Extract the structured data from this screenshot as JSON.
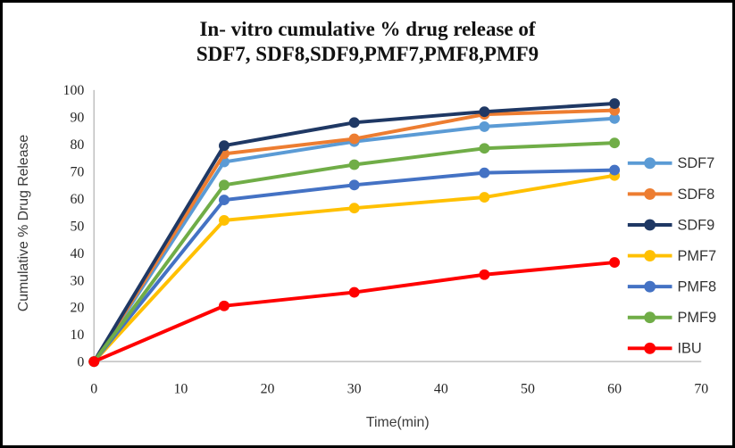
{
  "frame": {
    "border_color": "#000000",
    "background": "#FFFFFF"
  },
  "chart_data": {
    "type": "line",
    "title": "In- vitro cumulative % drug release of SDF7, SDF8,SDF9,PMF7,PMF8,PMF9",
    "title_lines": [
      "In- vitro cumulative % drug release of",
      "SDF7, SDF8,SDF9,PMF7,PMF8,PMF9"
    ],
    "xlabel": "Time(min)",
    "ylabel": "Cumulative % Drug Release",
    "x": [
      0,
      15,
      30,
      45,
      60
    ],
    "xlim": [
      0,
      70
    ],
    "ylim": [
      0,
      100
    ],
    "x_ticks": [
      0,
      10,
      20,
      30,
      40,
      50,
      60,
      70
    ],
    "y_ticks": [
      0,
      10,
      20,
      30,
      40,
      50,
      60,
      70,
      80,
      90,
      100
    ],
    "grid": false,
    "legend_position": "right",
    "axis_color": "#BFBFBF",
    "marker": "circle",
    "series": [
      {
        "name": "SDF7",
        "color": "#5B9BD5",
        "values": [
          0,
          73.5,
          81,
          86.5,
          89.5
        ]
      },
      {
        "name": "SDF8",
        "color": "#ED7D31",
        "values": [
          0,
          76.5,
          82,
          91,
          92.5
        ]
      },
      {
        "name": "SDF9",
        "color": "#1F3864",
        "values": [
          0,
          79.5,
          88,
          92,
          95
        ]
      },
      {
        "name": "PMF7",
        "color": "#FFC000",
        "values": [
          0,
          52,
          56.5,
          60.5,
          68.5
        ]
      },
      {
        "name": "PMF8",
        "color": "#4472C4",
        "values": [
          0,
          59.5,
          65,
          69.5,
          70.5
        ]
      },
      {
        "name": "PMF9",
        "color": "#70AD47",
        "values": [
          0,
          65,
          72.5,
          78.5,
          80.5
        ]
      },
      {
        "name": "IBU",
        "color": "#FF0000",
        "values": [
          0,
          20.5,
          25.5,
          32,
          36.5
        ]
      }
    ]
  }
}
